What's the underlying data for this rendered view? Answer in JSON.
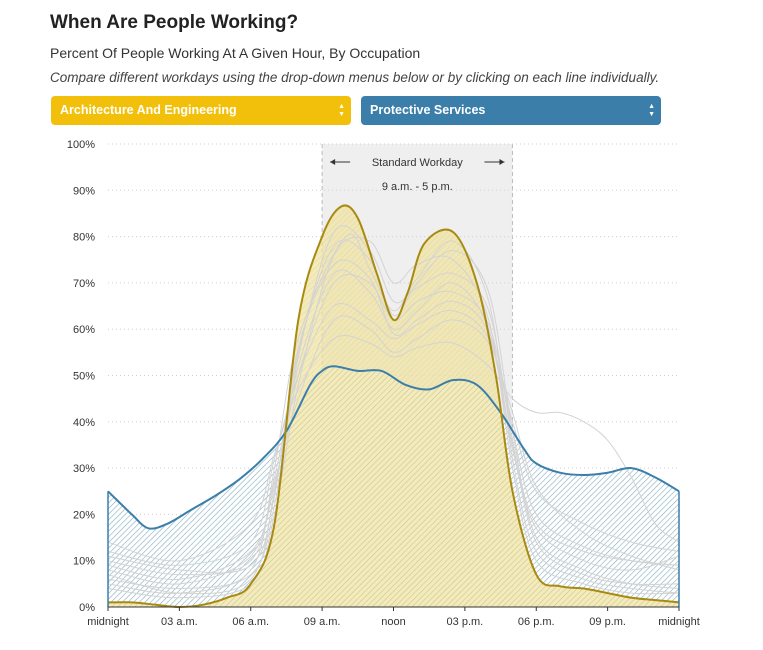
{
  "header": {
    "title": "When Are People Working?",
    "subtitle": "Percent Of People Working At A Given Hour, By Occupation",
    "instructions": "Compare different workdays using the drop-down menus below or by clicking on each line individually."
  },
  "controls": {
    "select_a": {
      "value": "Architecture And Engineering"
    },
    "select_b": {
      "value": "Protective Services"
    }
  },
  "colors": {
    "series_a": "#a88a10",
    "series_a_fill": "#f2dc8a",
    "series_b": "#3a7ea9",
    "series_b_hatch": "#5a9a78",
    "background_lines": "#d3d3d3",
    "workday_band": "#efefef"
  },
  "annotation": {
    "label": "Standard Workday",
    "range": "9 a.m. - 5 p.m."
  },
  "chart_data": {
    "type": "area",
    "x_unit": "hour of day",
    "ylim": [
      0,
      100
    ],
    "y_ticks": [
      "0%",
      "10%",
      "20%",
      "30%",
      "40%",
      "50%",
      "60%",
      "70%",
      "80%",
      "90%",
      "100%"
    ],
    "x_ticks": [
      {
        "hour": 0,
        "label": "midnight"
      },
      {
        "hour": 3,
        "label": "03 a.m."
      },
      {
        "hour": 6,
        "label": "06 a.m."
      },
      {
        "hour": 9,
        "label": "09 a.m."
      },
      {
        "hour": 12,
        "label": "noon"
      },
      {
        "hour": 15,
        "label": "03 p.m."
      },
      {
        "hour": 18,
        "label": "06 p.m."
      },
      {
        "hour": 21,
        "label": "09 p.m."
      },
      {
        "hour": 24,
        "label": "midnight"
      }
    ],
    "workday_band": [
      9,
      17
    ],
    "grid": true,
    "series": [
      {
        "name": "Architecture And Engineering",
        "points": [
          [
            0,
            1
          ],
          [
            1,
            1
          ],
          [
            2,
            0.5
          ],
          [
            3,
            0
          ],
          [
            4,
            0.5
          ],
          [
            5,
            2
          ],
          [
            6,
            5
          ],
          [
            7,
            18
          ],
          [
            8,
            62
          ],
          [
            9,
            80
          ],
          [
            9.8,
            86.5
          ],
          [
            10.5,
            84
          ],
          [
            11.3,
            72
          ],
          [
            12,
            62
          ],
          [
            12.6,
            68
          ],
          [
            13.3,
            78.5
          ],
          [
            14.5,
            81
          ],
          [
            15.5,
            70
          ],
          [
            16.3,
            50
          ],
          [
            17,
            25
          ],
          [
            18,
            7
          ],
          [
            19,
            4.5
          ],
          [
            20,
            4
          ],
          [
            21,
            3
          ],
          [
            22,
            2
          ],
          [
            23,
            1.5
          ],
          [
            24,
            1
          ]
        ]
      },
      {
        "name": "Protective Services",
        "points": [
          [
            0,
            25
          ],
          [
            1,
            20
          ],
          [
            1.7,
            17
          ],
          [
            2.5,
            18
          ],
          [
            3.5,
            21
          ],
          [
            4.5,
            24
          ],
          [
            5.5,
            27.5
          ],
          [
            6.5,
            32
          ],
          [
            7.5,
            38
          ],
          [
            8.5,
            48
          ],
          [
            9,
            51
          ],
          [
            9.5,
            52
          ],
          [
            10.5,
            51
          ],
          [
            11.5,
            51
          ],
          [
            12.5,
            48
          ],
          [
            13.5,
            47
          ],
          [
            14.5,
            49
          ],
          [
            15.5,
            48
          ],
          [
            16.5,
            42
          ],
          [
            17.5,
            34
          ],
          [
            18,
            31
          ],
          [
            19,
            29
          ],
          [
            20,
            28.5
          ],
          [
            21,
            29
          ],
          [
            22,
            30
          ],
          [
            23,
            28
          ],
          [
            24,
            25
          ]
        ]
      }
    ],
    "other_occupations": [
      [
        [
          0,
          7
        ],
        [
          3,
          3
        ],
        [
          6,
          6
        ],
        [
          7,
          25
        ],
        [
          8,
          55
        ],
        [
          9.5,
          78
        ],
        [
          11,
          75
        ],
        [
          12,
          63
        ],
        [
          13,
          70
        ],
        [
          14.5,
          77
        ],
        [
          16,
          68
        ],
        [
          17,
          38
        ],
        [
          18,
          15
        ],
        [
          20,
          8
        ],
        [
          22,
          5
        ],
        [
          24,
          4
        ]
      ],
      [
        [
          0,
          10
        ],
        [
          3,
          7
        ],
        [
          6,
          10
        ],
        [
          7,
          28
        ],
        [
          8,
          52
        ],
        [
          9.5,
          72
        ],
        [
          11,
          68
        ],
        [
          12,
          60
        ],
        [
          13,
          64
        ],
        [
          14.5,
          70
        ],
        [
          16,
          60
        ],
        [
          17,
          35
        ],
        [
          18,
          18
        ],
        [
          20,
          12
        ],
        [
          22,
          10
        ],
        [
          24,
          9
        ]
      ],
      [
        [
          0,
          5
        ],
        [
          3,
          3
        ],
        [
          6,
          8
        ],
        [
          7,
          30
        ],
        [
          8,
          58
        ],
        [
          10,
          80
        ],
        [
          11,
          73
        ],
        [
          12,
          64
        ],
        [
          13,
          71
        ],
        [
          14.5,
          79
        ],
        [
          16,
          66
        ],
        [
          17,
          32
        ],
        [
          18,
          12
        ],
        [
          20,
          6
        ],
        [
          22,
          4
        ],
        [
          24,
          3
        ]
      ],
      [
        [
          0,
          12
        ],
        [
          3,
          9
        ],
        [
          6,
          14
        ],
        [
          7,
          32
        ],
        [
          8,
          50
        ],
        [
          9.5,
          65
        ],
        [
          11,
          62
        ],
        [
          12,
          58
        ],
        [
          13,
          61
        ],
        [
          14.5,
          64
        ],
        [
          16,
          58
        ],
        [
          17,
          40
        ],
        [
          18,
          25
        ],
        [
          20,
          18
        ],
        [
          22,
          14
        ],
        [
          24,
          12
        ]
      ],
      [
        [
          0,
          4
        ],
        [
          3,
          2
        ],
        [
          6,
          5
        ],
        [
          7,
          20
        ],
        [
          8,
          48
        ],
        [
          9.5,
          76
        ],
        [
          11,
          79
        ],
        [
          12,
          70
        ],
        [
          13,
          74
        ],
        [
          14.5,
          75
        ],
        [
          16,
          62
        ],
        [
          17,
          30
        ],
        [
          18,
          10
        ],
        [
          20,
          5
        ],
        [
          22,
          3
        ],
        [
          24,
          3
        ]
      ],
      [
        [
          0,
          8
        ],
        [
          3,
          5
        ],
        [
          6,
          11
        ],
        [
          7,
          27
        ],
        [
          8,
          45
        ],
        [
          9.5,
          62
        ],
        [
          11,
          60
        ],
        [
          12,
          55
        ],
        [
          13,
          58
        ],
        [
          14.5,
          62
        ],
        [
          16,
          57
        ],
        [
          17,
          42
        ],
        [
          18,
          26
        ],
        [
          20,
          16
        ],
        [
          22,
          11
        ],
        [
          24,
          8
        ]
      ],
      [
        [
          0,
          14
        ],
        [
          3,
          10
        ],
        [
          6,
          18
        ],
        [
          7,
          33
        ],
        [
          8,
          47
        ],
        [
          9.5,
          58
        ],
        [
          11,
          57
        ],
        [
          12,
          54
        ],
        [
          13,
          56
        ],
        [
          14.5,
          57
        ],
        [
          16,
          52
        ],
        [
          17,
          45
        ],
        [
          18,
          42
        ],
        [
          19,
          42
        ],
        [
          20,
          40
        ],
        [
          21,
          36
        ],
        [
          22,
          28
        ],
        [
          23,
          18
        ],
        [
          24,
          14
        ]
      ],
      [
        [
          0,
          6
        ],
        [
          3,
          4
        ],
        [
          6,
          7
        ],
        [
          7,
          22
        ],
        [
          8,
          54
        ],
        [
          9.5,
          81
        ],
        [
          11,
          77
        ],
        [
          12,
          66
        ],
        [
          13,
          69
        ],
        [
          14.5,
          72
        ],
        [
          16,
          64
        ],
        [
          17,
          36
        ],
        [
          18,
          14
        ],
        [
          20,
          7
        ],
        [
          22,
          5
        ],
        [
          24,
          5
        ]
      ],
      [
        [
          0,
          9
        ],
        [
          3,
          6
        ],
        [
          6,
          12
        ],
        [
          7,
          26
        ],
        [
          8,
          50
        ],
        [
          9.5,
          70
        ],
        [
          11,
          70
        ],
        [
          12,
          62
        ],
        [
          13,
          66
        ],
        [
          14.5,
          68
        ],
        [
          16,
          61
        ],
        [
          17,
          38
        ],
        [
          18,
          20
        ],
        [
          20,
          13
        ],
        [
          22,
          10
        ],
        [
          24,
          9
        ]
      ],
      [
        [
          0,
          11
        ],
        [
          3,
          8
        ],
        [
          6,
          9
        ],
        [
          7,
          24
        ],
        [
          8,
          56
        ],
        [
          9.5,
          74
        ],
        [
          11,
          71
        ],
        [
          12,
          59
        ],
        [
          13,
          62
        ],
        [
          14.5,
          66
        ],
        [
          16,
          59
        ],
        [
          17,
          34
        ],
        [
          18,
          17
        ],
        [
          20,
          10
        ],
        [
          22,
          8
        ],
        [
          24,
          11
        ]
      ]
    ]
  }
}
